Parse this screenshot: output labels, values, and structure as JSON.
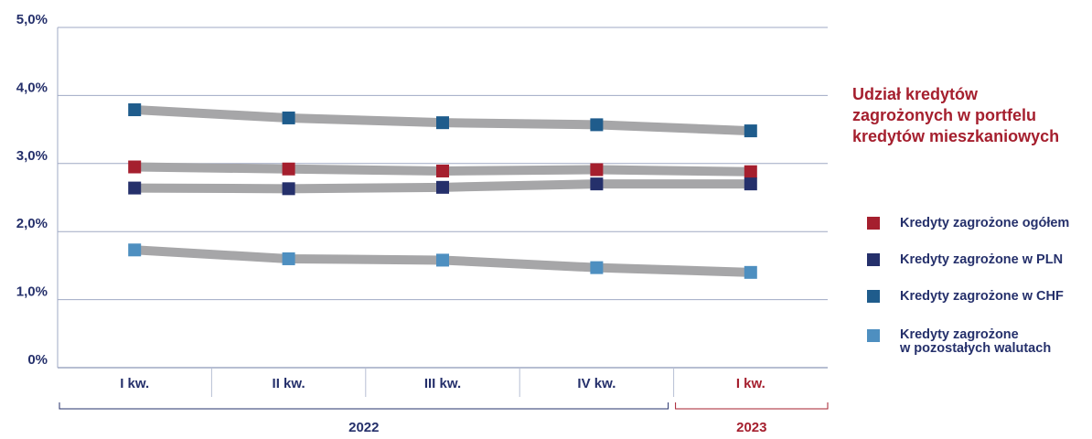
{
  "chart_data": {
    "type": "line",
    "title": "Udział kredytów zagrożonych w portfelu kredytów mieszkaniowych",
    "categories": [
      "I kw.",
      "II kw.",
      "III kw.",
      "IV kw.",
      "I kw."
    ],
    "groups": [
      {
        "label": "2022",
        "from": 0,
        "to": 3,
        "color": "#25306b"
      },
      {
        "label": "2023",
        "from": 4,
        "to": 4,
        "color": "#a51f2e"
      }
    ],
    "category_label_colors": [
      "#25306b",
      "#25306b",
      "#25306b",
      "#25306b",
      "#a51f2e"
    ],
    "y_ticks": [
      "0%",
      "1,0%",
      "2,0%",
      "3,0%",
      "4,0%",
      "5,0%"
    ],
    "ylim": [
      0,
      5
    ],
    "grid": true,
    "legend_position": "right",
    "series": [
      {
        "name": "Kredyty zagrożone ogółem",
        "color": "#a51f2e",
        "values": [
          2.95,
          2.92,
          2.89,
          2.91,
          2.88
        ]
      },
      {
        "name": "Kredyty zagrożone w PLN",
        "color": "#25306b",
        "values": [
          2.64,
          2.63,
          2.65,
          2.7,
          2.7
        ]
      },
      {
        "name": "Kredyty zagrożone w CHF",
        "color": "#1f5c8c",
        "values": [
          3.79,
          3.67,
          3.6,
          3.57,
          3.48
        ]
      },
      {
        "name": "Kredyty zagrożone\nw pozostałych walutach",
        "color": "#4e8fc0",
        "values": [
          1.73,
          1.6,
          1.58,
          1.47,
          1.4
        ]
      }
    ],
    "trend_line_color": "#a6a6a8"
  }
}
